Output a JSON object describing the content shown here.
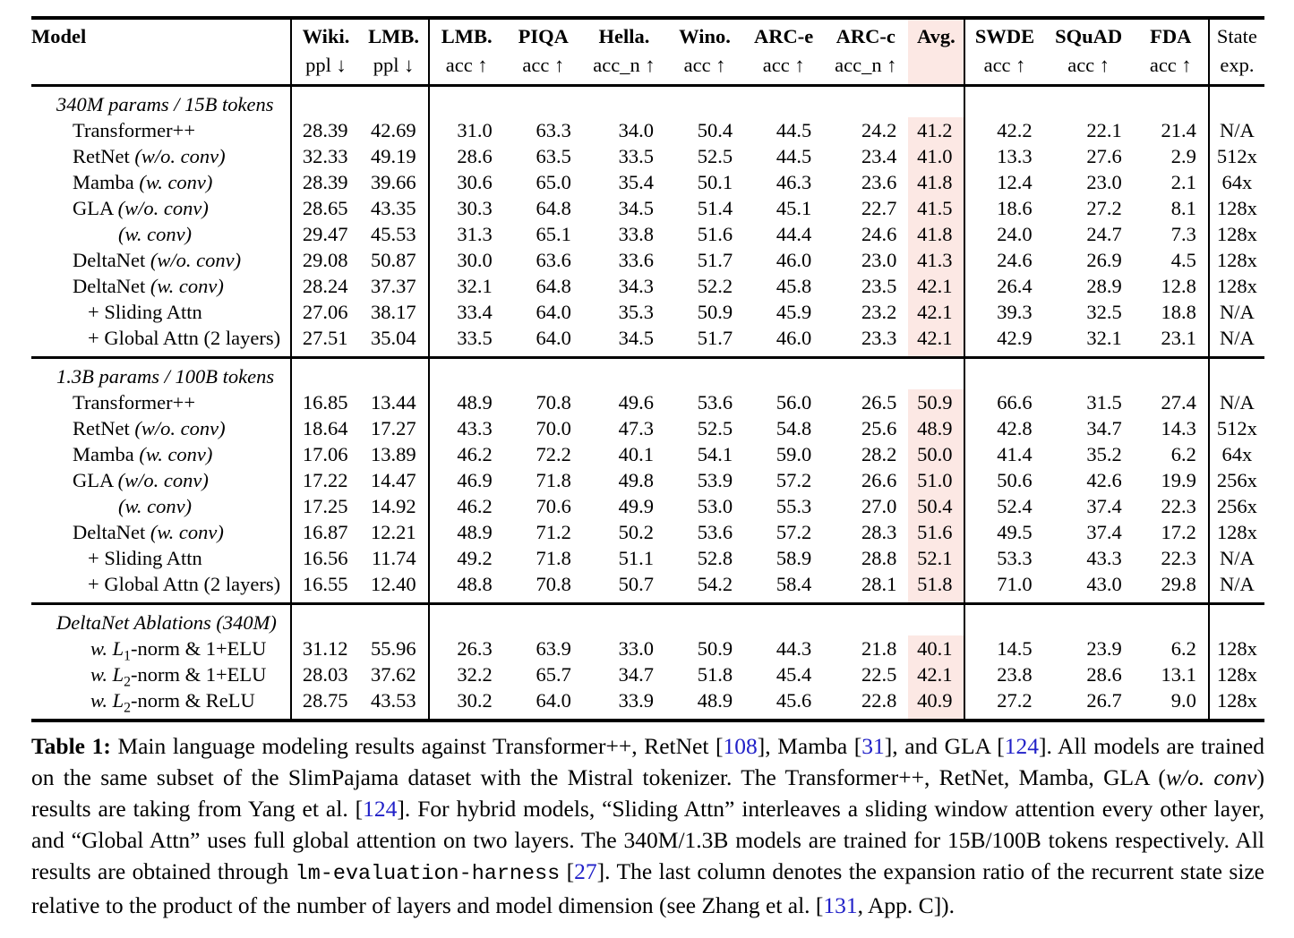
{
  "colors": {
    "avg_highlight": "#fce8e4",
    "cite": "#2121c8"
  },
  "table": {
    "columns": [
      {
        "id": "model",
        "label": "Model",
        "sub": "",
        "bold": true,
        "vl": false,
        "hl": false
      },
      {
        "id": "wiki",
        "label": "Wiki.",
        "sub": "ppl ↓",
        "bold": true,
        "vl": true,
        "hl": false
      },
      {
        "id": "lmb-ppl",
        "label": "LMB.",
        "sub": "ppl ↓",
        "bold": true,
        "vl": false,
        "hl": false
      },
      {
        "id": "lmb-acc",
        "label": "LMB.",
        "sub": "acc ↑",
        "bold": true,
        "vl": true,
        "hl": false
      },
      {
        "id": "piqa",
        "label": "PIQA",
        "sub": "acc ↑",
        "bold": true,
        "vl": false,
        "hl": false
      },
      {
        "id": "hella",
        "label": "Hella.",
        "sub": "acc_n ↑",
        "bold": true,
        "vl": false,
        "hl": false
      },
      {
        "id": "wino",
        "label": "Wino.",
        "sub": "acc ↑",
        "bold": true,
        "vl": false,
        "hl": false
      },
      {
        "id": "arc-e",
        "label": "ARC-e",
        "sub": "acc ↑",
        "bold": true,
        "vl": false,
        "hl": false
      },
      {
        "id": "arc-c",
        "label": "ARC-c",
        "sub": "acc_n ↑",
        "bold": true,
        "vl": false,
        "hl": false
      },
      {
        "id": "avg",
        "label": "Avg.",
        "sub": "",
        "bold": true,
        "vl": false,
        "hl": true
      },
      {
        "id": "swde",
        "label": "SWDE",
        "sub": "acc ↑",
        "bold": true,
        "vl": true,
        "hl": false
      },
      {
        "id": "squad",
        "label": "SQuAD",
        "sub": "acc ↑",
        "bold": true,
        "vl": false,
        "hl": false
      },
      {
        "id": "fda",
        "label": "FDA",
        "sub": "acc ↑",
        "bold": true,
        "vl": false,
        "hl": false
      },
      {
        "id": "state",
        "label": "State",
        "sub": "exp.",
        "bold": false,
        "vl": true,
        "hl": false
      }
    ],
    "sections": [
      {
        "title": [
          {
            "t": "340M params / 15B tokens",
            "s": "i"
          }
        ],
        "rows": [
          {
            "indent": 46,
            "label": [
              {
                "t": "Transformer++"
              }
            ],
            "values": [
              "28.39",
              "42.69",
              "31.0",
              "63.3",
              "34.0",
              "50.4",
              "44.5",
              "24.2",
              "41.2",
              "42.2",
              "22.1",
              "21.4",
              "N/A"
            ]
          },
          {
            "indent": 46,
            "label": [
              {
                "t": "RetNet "
              },
              {
                "t": "(w/o. conv)",
                "s": "i"
              }
            ],
            "values": [
              "32.33",
              "49.19",
              "28.6",
              "63.5",
              "33.5",
              "52.5",
              "44.5",
              "23.4",
              "41.0",
              "13.3",
              "27.6",
              "2.9",
              "512x"
            ]
          },
          {
            "indent": 46,
            "label": [
              {
                "t": "Mamba "
              },
              {
                "t": "(w. conv)",
                "s": "i"
              }
            ],
            "values": [
              "28.39",
              "39.66",
              "30.6",
              "65.0",
              "35.4",
              "50.1",
              "46.3",
              "23.6",
              "41.8",
              "12.4",
              "23.0",
              "2.1",
              "64x"
            ]
          },
          {
            "indent": 46,
            "label": [
              {
                "t": "GLA "
              },
              {
                "t": "(w/o. conv)",
                "s": "i"
              }
            ],
            "values": [
              "28.65",
              "43.35",
              "30.3",
              "64.8",
              "34.5",
              "51.4",
              "45.1",
              "22.7",
              "41.5",
              "18.6",
              "27.2",
              "8.1",
              "128x"
            ]
          },
          {
            "indent": 97,
            "label": [
              {
                "t": "(w. conv)",
                "s": "i"
              }
            ],
            "values": [
              "29.47",
              "45.53",
              "31.3",
              "65.1",
              "33.8",
              "51.6",
              "44.4",
              "24.6",
              "41.8",
              "24.0",
              "24.7",
              "7.3",
              "128x"
            ]
          },
          {
            "indent": 46,
            "label": [
              {
                "t": "DeltaNet "
              },
              {
                "t": "(w/o. conv)",
                "s": "i"
              }
            ],
            "values": [
              "29.08",
              "50.87",
              "30.0",
              "63.6",
              "33.6",
              "51.7",
              "46.0",
              "23.0",
              "41.3",
              "24.6",
              "26.9",
              "4.5",
              "128x"
            ]
          },
          {
            "indent": 46,
            "label": [
              {
                "t": "DeltaNet "
              },
              {
                "t": "(w. conv)",
                "s": "i"
              }
            ],
            "values": [
              "28.24",
              "37.37",
              "32.1",
              "64.8",
              "34.3",
              "52.2",
              "45.8",
              "23.5",
              "42.1",
              "26.4",
              "28.9",
              "12.8",
              "128x"
            ]
          },
          {
            "indent": 63,
            "label": [
              {
                "t": "+ Sliding Attn"
              }
            ],
            "values": [
              "27.06",
              "38.17",
              "33.4",
              "64.0",
              "35.3",
              "50.9",
              "45.9",
              "23.2",
              "42.1",
              "39.3",
              "32.5",
              "18.8",
              "N/A"
            ]
          },
          {
            "indent": 63,
            "label": [
              {
                "t": "+ Global Attn (2 layers)"
              }
            ],
            "values": [
              "27.51",
              "35.04",
              "33.5",
              "64.0",
              "34.5",
              "51.7",
              "46.0",
              "23.3",
              "42.1",
              "42.9",
              "32.1",
              "23.1",
              "N/A"
            ]
          }
        ]
      },
      {
        "title": [
          {
            "t": "1.3B params / 100B tokens",
            "s": "i"
          }
        ],
        "rows": [
          {
            "indent": 46,
            "label": [
              {
                "t": "Transformer++"
              }
            ],
            "values": [
              "16.85",
              "13.44",
              "48.9",
              "70.8",
              "49.6",
              "53.6",
              "56.0",
              "26.5",
              "50.9",
              "66.6",
              "31.5",
              "27.4",
              "N/A"
            ]
          },
          {
            "indent": 46,
            "label": [
              {
                "t": "RetNet "
              },
              {
                "t": "(w/o. conv)",
                "s": "i"
              }
            ],
            "values": [
              "18.64",
              "17.27",
              "43.3",
              "70.0",
              "47.3",
              "52.5",
              "54.8",
              "25.6",
              "48.9",
              "42.8",
              "34.7",
              "14.3",
              "512x"
            ]
          },
          {
            "indent": 46,
            "label": [
              {
                "t": "Mamba "
              },
              {
                "t": "(w. conv)",
                "s": "i"
              }
            ],
            "values": [
              "17.06",
              "13.89",
              "46.2",
              "72.2",
              "40.1",
              "54.1",
              "59.0",
              "28.2",
              "50.0",
              "41.4",
              "35.2",
              "6.2",
              "64x"
            ]
          },
          {
            "indent": 46,
            "label": [
              {
                "t": "GLA "
              },
              {
                "t": "(w/o. conv)",
                "s": "i"
              }
            ],
            "values": [
              "17.22",
              "14.47",
              "46.9",
              "71.8",
              "49.8",
              "53.9",
              "57.2",
              "26.6",
              "51.0",
              "50.6",
              "42.6",
              "19.9",
              "256x"
            ]
          },
          {
            "indent": 97,
            "label": [
              {
                "t": "(w. conv)",
                "s": "i"
              }
            ],
            "values": [
              "17.25",
              "14.92",
              "46.2",
              "70.6",
              "49.9",
              "53.0",
              "55.3",
              "27.0",
              "50.4",
              "52.4",
              "37.4",
              "22.3",
              "256x"
            ]
          },
          {
            "indent": 46,
            "label": [
              {
                "t": "DeltaNet "
              },
              {
                "t": "(w. conv)",
                "s": "i"
              }
            ],
            "values": [
              "16.87",
              "12.21",
              "48.9",
              "71.2",
              "50.2",
              "53.6",
              "57.2",
              "28.3",
              "51.6",
              "49.5",
              "37.4",
              "17.2",
              "128x"
            ]
          },
          {
            "indent": 63,
            "label": [
              {
                "t": "+ Sliding Attn"
              }
            ],
            "values": [
              "16.56",
              "11.74",
              "49.2",
              "71.8",
              "51.1",
              "52.8",
              "58.9",
              "28.8",
              "52.1",
              "53.3",
              "43.3",
              "22.3",
              "N/A"
            ]
          },
          {
            "indent": 63,
            "label": [
              {
                "t": "+ Global Attn (2 layers)"
              }
            ],
            "values": [
              "16.55",
              "12.40",
              "48.8",
              "70.8",
              "50.7",
              "54.2",
              "58.4",
              "28.1",
              "51.8",
              "71.0",
              "43.0",
              "29.8",
              "N/A"
            ]
          }
        ]
      },
      {
        "title": [
          {
            "t": "DeltaNet Ablations (340M)",
            "s": "i"
          }
        ],
        "rows": [
          {
            "indent": 66,
            "label": [
              {
                "t": "w. ",
                "s": "i"
              },
              {
                "t": "L",
                "s": "i"
              },
              {
                "t": "1",
                "s": "sub"
              },
              {
                "t": "-norm & 1+ELU"
              }
            ],
            "values": [
              "31.12",
              "55.96",
              "26.3",
              "63.9",
              "33.0",
              "50.9",
              "44.3",
              "21.8",
              "40.1",
              "14.5",
              "23.9",
              "6.2",
              "128x"
            ]
          },
          {
            "indent": 66,
            "label": [
              {
                "t": "w. ",
                "s": "i"
              },
              {
                "t": "L",
                "s": "i"
              },
              {
                "t": "2",
                "s": "sub"
              },
              {
                "t": "-norm & 1+ELU"
              }
            ],
            "values": [
              "28.03",
              "37.62",
              "32.2",
              "65.7",
              "34.7",
              "51.8",
              "45.4",
              "22.5",
              "42.1",
              "23.8",
              "28.6",
              "13.1",
              "128x"
            ]
          },
          {
            "indent": 66,
            "label": [
              {
                "t": "w. ",
                "s": "i"
              },
              {
                "t": "L",
                "s": "i"
              },
              {
                "t": "2",
                "s": "sub"
              },
              {
                "t": "-norm & ReLU"
              }
            ],
            "values": [
              "28.75",
              "43.53",
              "30.2",
              "64.0",
              "33.9",
              "48.9",
              "45.6",
              "22.8",
              "40.9",
              "27.2",
              "26.7",
              "9.0",
              "128x"
            ]
          }
        ]
      }
    ]
  },
  "caption": {
    "segments": [
      {
        "t": "Table 1:",
        "s": "b"
      },
      {
        "t": " Main language modeling results against Transformer++, RetNet ["
      },
      {
        "t": "108",
        "s": "cite"
      },
      {
        "t": "], Mamba ["
      },
      {
        "t": "31",
        "s": "cite"
      },
      {
        "t": "], and GLA ["
      },
      {
        "t": "124",
        "s": "cite"
      },
      {
        "t": "]. All models are trained on the same subset of the SlimPajama dataset with the Mistral tokenizer. The Transformer++, RetNet, Mamba, GLA ("
      },
      {
        "t": "w/o. conv",
        "s": "i"
      },
      {
        "t": ") results are taking from Yang et al. ["
      },
      {
        "t": "124",
        "s": "cite"
      },
      {
        "t": "]. For hybrid models, “Sliding Attn” interleaves a sliding window attention every other layer, and “Global Attn” uses full global attention on two layers. The 340M/1.3B models are trained for 15B/100B tokens respectively. All results are obtained through "
      },
      {
        "t": "lm-evaluation-harness",
        "s": "mono"
      },
      {
        "t": " ["
      },
      {
        "t": "27",
        "s": "cite"
      },
      {
        "t": "]. The last column denotes the expansion ratio of the recurrent state size relative to the product of the number of layers and model dimension (see Zhang et al. ["
      },
      {
        "t": "131",
        "s": "cite"
      },
      {
        "t": ", App. C])."
      }
    ]
  }
}
